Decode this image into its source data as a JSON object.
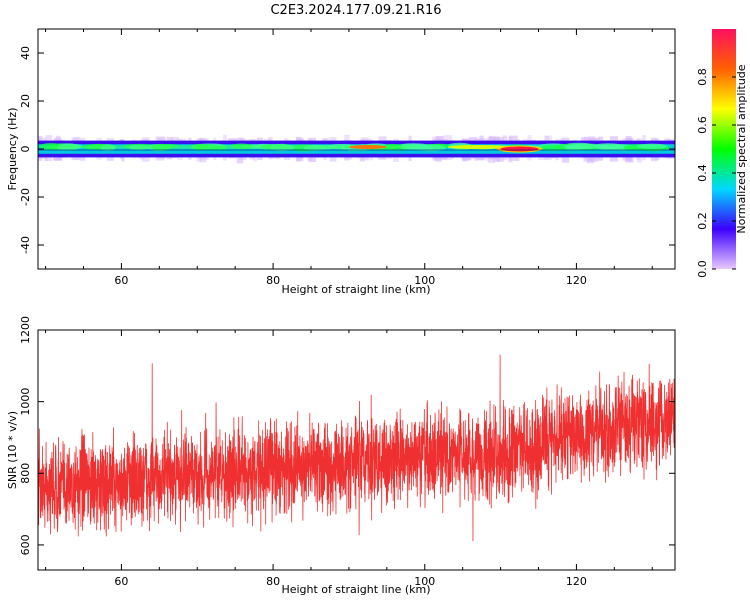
{
  "title": "C2E3.2024.177.09.21.R16",
  "chart_data": [
    {
      "type": "heatmap",
      "xlabel": "Height of straight line (km)",
      "ylabel": "Frequency (Hz)",
      "xlim": [
        49,
        133
      ],
      "ylim": [
        -50,
        50
      ],
      "x_ticks": [
        60,
        80,
        100,
        120
      ],
      "y_ticks": [
        -40,
        -20,
        0,
        20,
        40
      ],
      "colorbar": {
        "label": "Normalized spectral amplitude",
        "range": [
          0,
          1
        ],
        "ticks": [
          0.0,
          0.2,
          0.4,
          0.6,
          0.8
        ],
        "colormap": [
          "#e8c8ff",
          "#3c00ff",
          "#00d8ff",
          "#00ff00",
          "#ffff00",
          "#ff6000",
          "#ff1060"
        ]
      },
      "band": {
        "center_hz": 0,
        "half_width_hz": 2,
        "features": [
          {
            "x_range": [
              49,
              100
            ],
            "amplitude": 0.45,
            "note_color": "green-yellow"
          },
          {
            "x_range": [
              90,
              95
            ],
            "amplitude": 0.75
          },
          {
            "x_range": [
              103,
              111
            ],
            "amplitude": 0.55
          },
          {
            "x_range": [
              110,
              115
            ],
            "amplitude": 0.97
          }
        ]
      }
    },
    {
      "type": "line",
      "xlabel": "Height of straight line (km)",
      "ylabel": "SNR (10 * v/v)",
      "xlim": [
        49,
        133
      ],
      "ylim": [
        530,
        1200
      ],
      "x_ticks": [
        60,
        80,
        100,
        120
      ],
      "y_ticks": [
        600,
        800,
        1000,
        1200
      ],
      "grid": false,
      "series": [
        {
          "color": "#f03030",
          "trend_x": [
            49,
            60,
            70,
            80,
            90,
            100,
            110,
            115,
            116,
            125,
            133
          ],
          "trend_y": [
            760,
            775,
            790,
            810,
            830,
            845,
            855,
            860,
            900,
            925,
            960
          ],
          "noise_amplitude": 200
        }
      ]
    }
  ]
}
